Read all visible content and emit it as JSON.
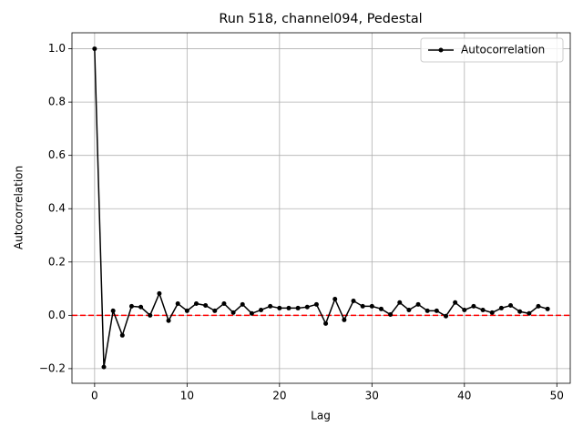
{
  "chart_data": {
    "type": "line",
    "title": "Run 518, channel094, Pedestal",
    "xlabel": "Lag",
    "ylabel": "Autocorrelation",
    "x": [
      0,
      1,
      2,
      3,
      4,
      5,
      6,
      7,
      8,
      9,
      10,
      11,
      12,
      13,
      14,
      15,
      16,
      17,
      18,
      19,
      20,
      21,
      22,
      23,
      24,
      25,
      26,
      27,
      28,
      29,
      30,
      31,
      32,
      33,
      34,
      35,
      36,
      37,
      38,
      39,
      40,
      41,
      42,
      43,
      44,
      45,
      46,
      47,
      48,
      49
    ],
    "series": [
      {
        "name": "Autocorrelation",
        "color": "#000000",
        "values": [
          1.0,
          -0.194,
          0.017,
          -0.075,
          0.034,
          0.031,
          0.0,
          0.082,
          -0.02,
          0.044,
          0.017,
          0.044,
          0.037,
          0.017,
          0.044,
          0.01,
          0.041,
          0.007,
          0.02,
          0.034,
          0.027,
          0.027,
          0.027,
          0.031,
          0.041,
          -0.031,
          0.061,
          -0.017,
          0.054,
          0.034,
          0.034,
          0.024,
          0.003,
          0.048,
          0.02,
          0.041,
          0.017,
          0.017,
          -0.003,
          0.048,
          0.02,
          0.034,
          0.02,
          0.01,
          0.027,
          0.037,
          0.014,
          0.007,
          0.034,
          0.024
        ]
      }
    ],
    "hline": {
      "value": 0,
      "color": "#ff0000"
    },
    "xlim": [
      -2.45,
      51.45
    ],
    "ylim": [
      -0.255,
      1.06
    ],
    "xticks": [
      0,
      10,
      20,
      30,
      40,
      50
    ],
    "yticks": [
      {
        "value": -0.2,
        "label": "−0.2"
      },
      {
        "value": 0.0,
        "label": "0.0"
      },
      {
        "value": 0.2,
        "label": "0.2"
      },
      {
        "value": 0.4,
        "label": "0.4"
      },
      {
        "value": 0.6,
        "label": "0.6"
      },
      {
        "value": 0.8,
        "label": "0.8"
      },
      {
        "value": 1.0,
        "label": "1.0"
      }
    ],
    "grid": true,
    "legend": "upper right"
  }
}
